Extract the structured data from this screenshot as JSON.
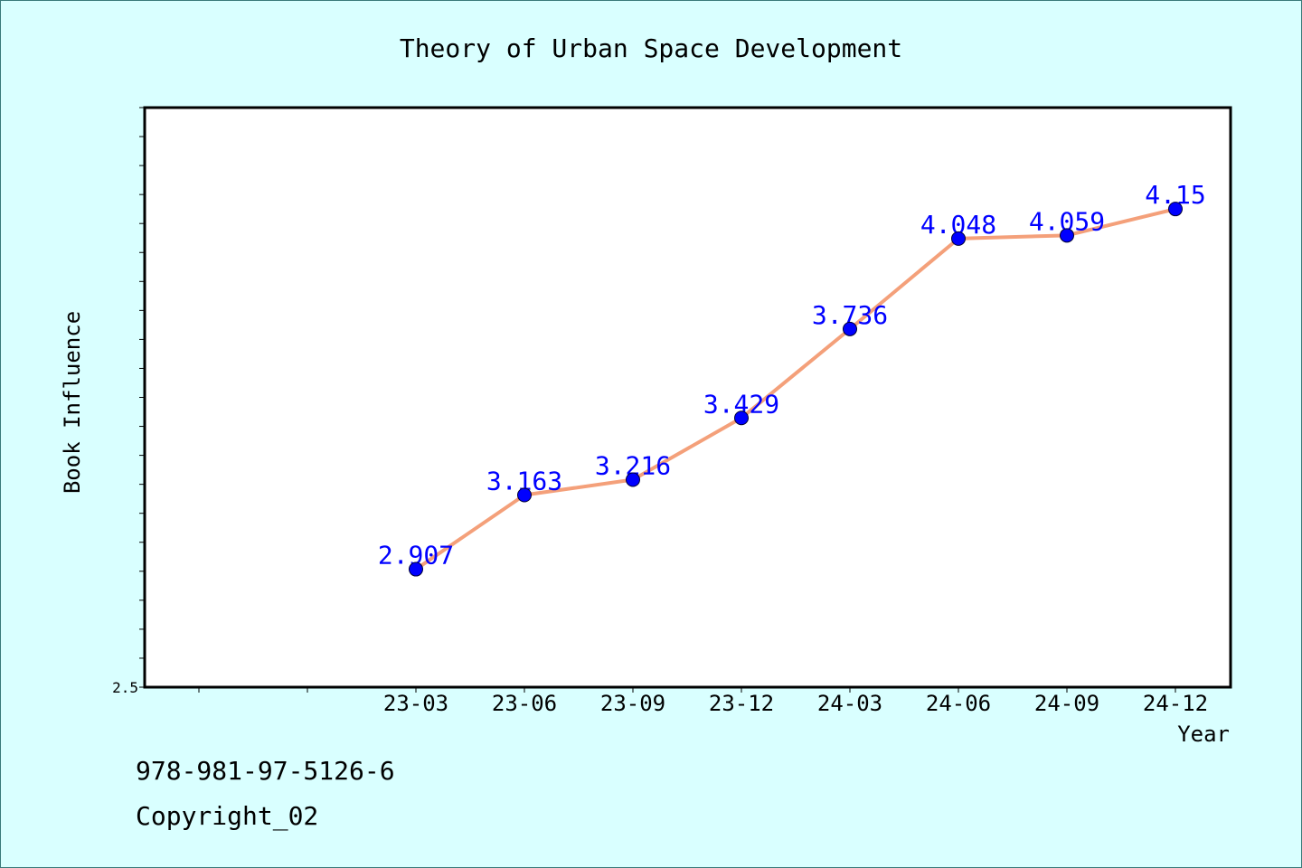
{
  "chart_data": {
    "type": "line",
    "title": "Theory of Urban Space Development",
    "xlabel": "Year",
    "ylabel": "Book Influence",
    "categories": [
      "23-03",
      "23-06",
      "23-09",
      "23-12",
      "24-03",
      "24-06",
      "24-09",
      "24-12"
    ],
    "values": [
      2.907,
      3.163,
      3.216,
      3.429,
      3.736,
      4.048,
      4.059,
      4.15
    ],
    "value_labels": [
      "2.907",
      "3.163",
      "3.216",
      "3.429",
      "3.736",
      "4.048",
      "4.059",
      "4.15"
    ],
    "ylim": [
      2.5,
      4.5
    ],
    "y_tick_labels": [
      "2.5"
    ],
    "grid": false,
    "line_color": "#f4a07a",
    "marker_color": "#0000ff",
    "label_color": "#0000ff",
    "background_color": "#d9ffff",
    "plot_background": "#ffffff"
  },
  "footer": {
    "isbn": "978-981-97-5126-6",
    "copyright": "Copyright_02"
  }
}
